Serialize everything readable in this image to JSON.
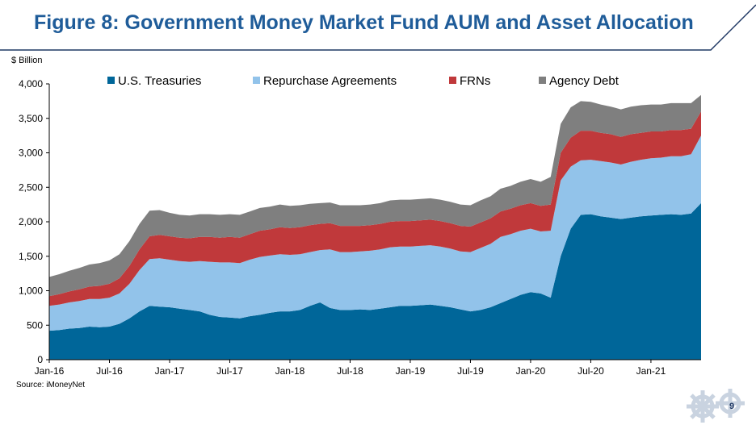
{
  "slide": {
    "title": "Figure 8: Government Money Market Fund AUM and Asset Allocation",
    "source": "Source: iMoneyNet",
    "page_number": "9",
    "colors": {
      "title": "#1f5c99",
      "rule": "#1f3864"
    }
  },
  "chart_data": {
    "type": "area",
    "stacked": true,
    "title": "",
    "ylabel": "$ Billion",
    "xlabel": "",
    "ylim": [
      0,
      4000
    ],
    "yticks": [
      0,
      500,
      1000,
      1500,
      2000,
      2500,
      3000,
      3500,
      4000
    ],
    "ytick_labels": [
      "0",
      "500",
      "1,000",
      "1,500",
      "2,000",
      "2,500",
      "3,000",
      "3,500",
      "4,000"
    ],
    "xlim": [
      "Jan-16",
      "Jun-21"
    ],
    "xtick_labels": [
      "Jan-16",
      "Jul-16",
      "Jan-17",
      "Jul-17",
      "Jan-18",
      "Jul-18",
      "Jan-19",
      "Jul-19",
      "Jan-20",
      "Jul-20",
      "Jan-21"
    ],
    "grid": false,
    "legend_position": "top",
    "x": [
      "Jan-16",
      "Feb-16",
      "Mar-16",
      "Apr-16",
      "May-16",
      "Jun-16",
      "Jul-16",
      "Aug-16",
      "Sep-16",
      "Oct-16",
      "Nov-16",
      "Dec-16",
      "Jan-17",
      "Feb-17",
      "Mar-17",
      "Apr-17",
      "May-17",
      "Jun-17",
      "Jul-17",
      "Aug-17",
      "Sep-17",
      "Oct-17",
      "Nov-17",
      "Dec-17",
      "Jan-18",
      "Feb-18",
      "Mar-18",
      "Apr-18",
      "May-18",
      "Jun-18",
      "Jul-18",
      "Aug-18",
      "Sep-18",
      "Oct-18",
      "Nov-18",
      "Dec-18",
      "Jan-19",
      "Feb-19",
      "Mar-19",
      "Apr-19",
      "May-19",
      "Jun-19",
      "Jul-19",
      "Aug-19",
      "Sep-19",
      "Oct-19",
      "Nov-19",
      "Dec-19",
      "Jan-20",
      "Feb-20",
      "Mar-20",
      "Apr-20",
      "May-20",
      "Jun-20",
      "Jul-20",
      "Aug-20",
      "Sep-20",
      "Oct-20",
      "Nov-20",
      "Dec-20",
      "Jan-21",
      "Feb-21",
      "Mar-21",
      "Apr-21",
      "May-21",
      "Jun-21"
    ],
    "series": [
      {
        "name": "U.S. Treasuries",
        "color": "#006699",
        "values": [
          420,
          430,
          450,
          460,
          480,
          470,
          480,
          520,
          600,
          700,
          780,
          770,
          760,
          740,
          720,
          700,
          650,
          620,
          610,
          600,
          630,
          650,
          680,
          700,
          700,
          720,
          780,
          830,
          750,
          720,
          720,
          730,
          720,
          740,
          760,
          780,
          780,
          790,
          800,
          780,
          760,
          730,
          700,
          720,
          760,
          820,
          880,
          940,
          980,
          960,
          900,
          1500,
          1900,
          2100,
          2110,
          2080,
          2060,
          2040,
          2060,
          2080,
          2090,
          2100,
          2110,
          2100,
          2120,
          2270
        ]
      },
      {
        "name": "Repurchase Agreements",
        "color": "#92c3ea",
        "values": [
          360,
          370,
          380,
          390,
          400,
          410,
          420,
          440,
          500,
          600,
          680,
          700,
          690,
          690,
          700,
          730,
          770,
          790,
          800,
          800,
          820,
          840,
          830,
          830,
          820,
          810,
          780,
          760,
          850,
          840,
          840,
          840,
          860,
          860,
          870,
          860,
          860,
          860,
          860,
          860,
          850,
          840,
          860,
          900,
          920,
          960,
          940,
          930,
          920,
          900,
          970,
          1100,
          900,
          790,
          790,
          800,
          800,
          790,
          810,
          820,
          830,
          830,
          840,
          850,
          860,
          980
        ]
      },
      {
        "name": "FRNs",
        "color": "#c0393b",
        "values": [
          140,
          150,
          160,
          170,
          180,
          190,
          200,
          220,
          260,
          300,
          330,
          340,
          340,
          340,
          340,
          350,
          360,
          360,
          370,
          370,
          370,
          380,
          380,
          390,
          390,
          390,
          390,
          380,
          380,
          380,
          380,
          370,
          370,
          370,
          370,
          370,
          370,
          370,
          370,
          370,
          370,
          370,
          370,
          370,
          370,
          370,
          370,
          370,
          370,
          370,
          380,
          400,
          420,
          430,
          420,
          410,
          410,
          400,
          400,
          390,
          390,
          380,
          380,
          380,
          370,
          350
        ]
      },
      {
        "name": "Agency Debt",
        "color": "#7f7f7f",
        "values": [
          280,
          290,
          300,
          310,
          320,
          330,
          340,
          350,
          360,
          370,
          370,
          360,
          340,
          330,
          330,
          330,
          330,
          330,
          330,
          330,
          330,
          330,
          330,
          330,
          320,
          320,
          310,
          300,
          300,
          300,
          300,
          300,
          300,
          300,
          310,
          310,
          310,
          310,
          310,
          310,
          310,
          310,
          310,
          320,
          320,
          330,
          330,
          340,
          350,
          350,
          400,
          420,
          440,
          430,
          420,
          410,
          400,
          400,
          400,
          400,
          390,
          390,
          390,
          390,
          370,
          240
        ]
      }
    ]
  }
}
